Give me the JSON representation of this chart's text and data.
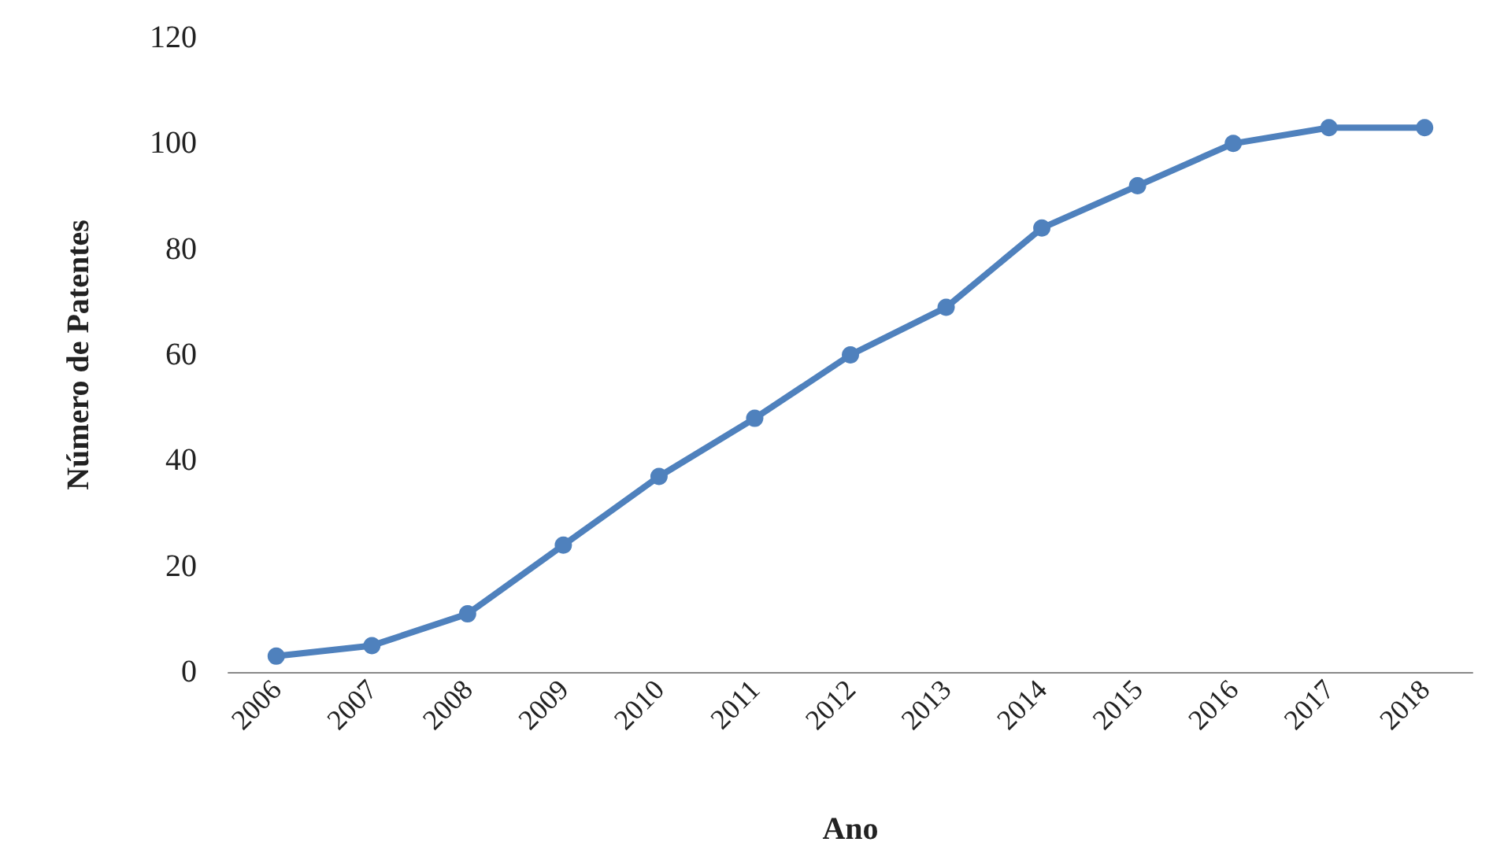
{
  "chart_data": {
    "type": "line",
    "xlabel": "Ano",
    "ylabel": "Número de Patentes",
    "categories": [
      "2006",
      "2007",
      "2008",
      "2009",
      "2010",
      "2011",
      "2012",
      "2013",
      "2014",
      "2015",
      "2016",
      "2017",
      "2018"
    ],
    "series": [
      {
        "color": "#4f81bd",
        "values": [
          3,
          5,
          11,
          24,
          37,
          48,
          60,
          69,
          84,
          92,
          100,
          103,
          103
        ]
      }
    ],
    "ylim": [
      0,
      120
    ],
    "yticks": [
      0,
      20,
      40,
      60,
      80,
      100,
      120
    ],
    "grid": false,
    "marker": "circle",
    "line_style": "solid"
  }
}
